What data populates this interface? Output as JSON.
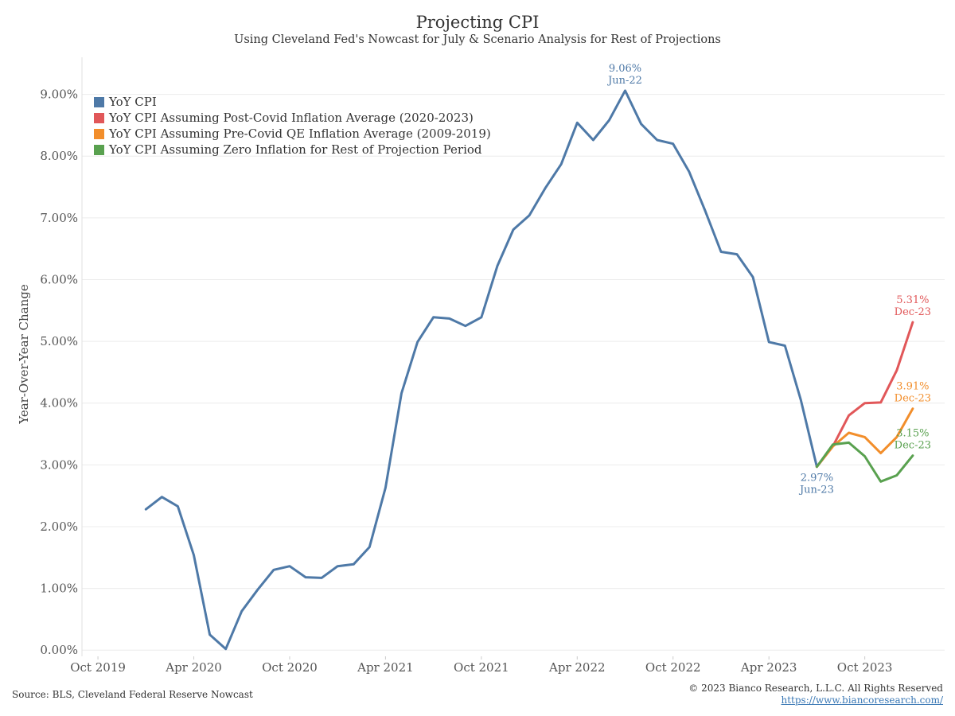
{
  "header": {
    "title": "Projecting CPI",
    "subtitle": "Using Cleveland Fed's Nowcast for July & Scenario Analysis for Rest of Projections"
  },
  "footer": {
    "source": "Source: BLS, Cleveland Federal Reserve Nowcast",
    "copyright": "© 2023 Bianco Research, L.L.C. All Rights Reserved",
    "link": "https://www.biancoresearch.com/"
  },
  "colors": {
    "blue": "#4e79a7",
    "red": "#e15759",
    "orange": "#f28e2b",
    "green": "#59a14f"
  },
  "chart_data": {
    "type": "line",
    "ylabel": "Year-Over-Year Change",
    "xlabel": "",
    "ylim": [
      -0.1,
      9.6
    ],
    "yticks": [
      0,
      1,
      2,
      3,
      4,
      5,
      6,
      7,
      8,
      9
    ],
    "ytick_labels": [
      "0.00%",
      "1.00%",
      "2.00%",
      "3.00%",
      "4.00%",
      "5.00%",
      "6.00%",
      "7.00%",
      "8.00%",
      "9.00%"
    ],
    "xlim": [
      "2019-09",
      "2024-03"
    ],
    "xticks": [
      "2019-10",
      "2020-04",
      "2020-10",
      "2021-04",
      "2021-10",
      "2022-04",
      "2022-10",
      "2023-04",
      "2023-10"
    ],
    "xtick_labels": [
      "Oct 2019",
      "Apr 2020",
      "Oct 2020",
      "Apr 2021",
      "Oct 2021",
      "Apr 2022",
      "Oct 2022",
      "Apr 2023",
      "Oct 2023"
    ],
    "grid": "horizontal",
    "legend_position": "top-left",
    "series": [
      {
        "name": "YoY CPI",
        "color": "#4e79a7",
        "points": [
          [
            "2020-01",
            2.28
          ],
          [
            "2020-02",
            2.48
          ],
          [
            "2020-03",
            2.33
          ],
          [
            "2020-04",
            1.54
          ],
          [
            "2020-05",
            0.25
          ],
          [
            "2020-06",
            0.02
          ],
          [
            "2020-07",
            0.63
          ],
          [
            "2020-08",
            0.98
          ],
          [
            "2020-09",
            1.3
          ],
          [
            "2020-10",
            1.36
          ],
          [
            "2020-11",
            1.18
          ],
          [
            "2020-12",
            1.17
          ],
          [
            "2021-01",
            1.36
          ],
          [
            "2021-02",
            1.39
          ],
          [
            "2021-03",
            1.67
          ],
          [
            "2021-04",
            2.63
          ],
          [
            "2021-05",
            4.16
          ],
          [
            "2021-06",
            4.99
          ],
          [
            "2021-07",
            5.39
          ],
          [
            "2021-08",
            5.37
          ],
          [
            "2021-09",
            5.25
          ],
          [
            "2021-10",
            5.39
          ],
          [
            "2021-11",
            6.22
          ],
          [
            "2021-12",
            6.81
          ],
          [
            "2022-01",
            7.04
          ],
          [
            "2022-02",
            7.48
          ],
          [
            "2022-03",
            7.87
          ],
          [
            "2022-04",
            8.54
          ],
          [
            "2022-05",
            8.26
          ],
          [
            "2022-06",
            8.58
          ],
          [
            "2022-07",
            9.06
          ],
          [
            "2022-08",
            8.52
          ],
          [
            "2022-09",
            8.26
          ],
          [
            "2022-10",
            8.2
          ],
          [
            "2022-11",
            7.75
          ],
          [
            "2022-12",
            7.12
          ],
          [
            "2023-01",
            6.45
          ],
          [
            "2023-02",
            6.41
          ],
          [
            "2023-03",
            6.04
          ],
          [
            "2023-04",
            4.99
          ],
          [
            "2023-05",
            4.93
          ],
          [
            "2023-06",
            4.05
          ],
          [
            "2023-07",
            2.97
          ]
        ]
      },
      {
        "name": "YoY CPI Assuming Post-Covid Inflation Average (2020-2023)",
        "color": "#e15759",
        "points": [
          [
            "2023-07",
            2.97
          ],
          [
            "2023-08",
            3.3
          ],
          [
            "2023-09",
            3.8
          ],
          [
            "2023-10",
            4.0
          ],
          [
            "2023-11",
            4.01
          ],
          [
            "2023-12",
            4.53
          ],
          [
            "2024-01",
            5.31
          ]
        ]
      },
      {
        "name": "YoY CPI Assuming Pre-Covid QE Inflation Average (2009-2019)",
        "color": "#f28e2b",
        "points": [
          [
            "2023-07",
            2.97
          ],
          [
            "2023-08",
            3.3
          ],
          [
            "2023-09",
            3.52
          ],
          [
            "2023-10",
            3.45
          ],
          [
            "2023-11",
            3.19
          ],
          [
            "2023-12",
            3.45
          ],
          [
            "2024-01",
            3.91
          ]
        ]
      },
      {
        "name": "YoY CPI Assuming Zero Inflation for Rest of Projection Period",
        "color": "#59a14f",
        "points": [
          [
            "2023-07",
            2.97
          ],
          [
            "2023-08",
            3.33
          ],
          [
            "2023-09",
            3.36
          ],
          [
            "2023-10",
            3.14
          ],
          [
            "2023-11",
            2.73
          ],
          [
            "2023-12",
            2.83
          ],
          [
            "2024-01",
            3.15
          ]
        ]
      }
    ],
    "annotations": [
      {
        "value": "9.06%",
        "label": "Jun-22",
        "series": 0,
        "point": 30,
        "color": "#4e79a7",
        "side": "above"
      },
      {
        "value": "2.97%",
        "label": "Jun-23",
        "series": 0,
        "point": 42,
        "color": "#4e79a7",
        "side": "below"
      },
      {
        "value": "5.31%",
        "label": "Dec-23",
        "series": 1,
        "point": 6,
        "color": "#e15759",
        "side": "above"
      },
      {
        "value": "3.91%",
        "label": "Dec-23",
        "series": 2,
        "point": 6,
        "color": "#f28e2b",
        "side": "above"
      },
      {
        "value": "3.15%",
        "label": "Dec-23",
        "series": 3,
        "point": 6,
        "color": "#59a14f",
        "side": "above"
      }
    ]
  }
}
